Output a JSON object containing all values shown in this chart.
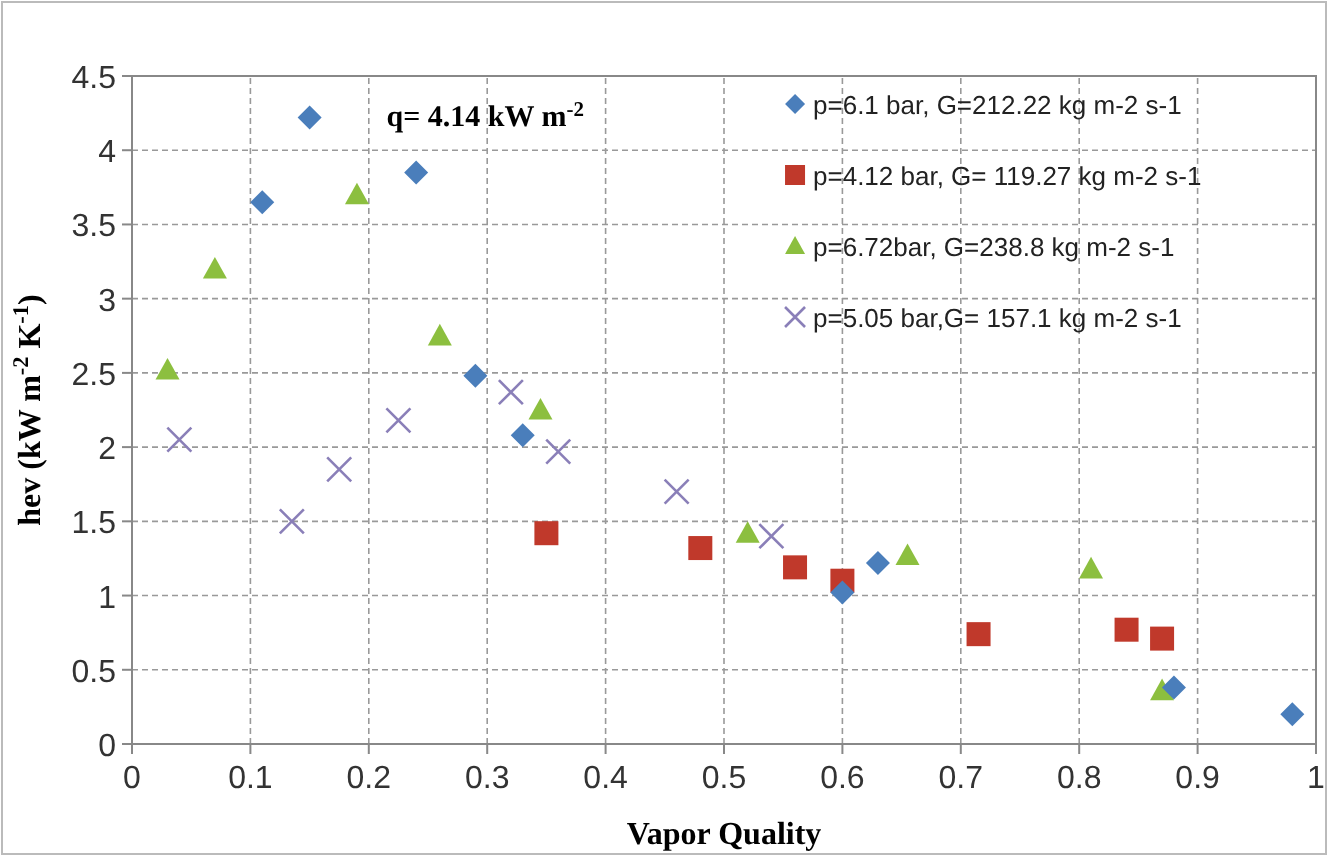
{
  "chart_data": {
    "type": "scatter",
    "xlabel": "Vapor Quality",
    "ylabel": "hev (kW m$^{-2}$ K$^{-1}$)",
    "annotations": [
      "q= 4.14 kW m$^{-2}$"
    ],
    "xlim": [
      0,
      1
    ],
    "xticks": [
      0,
      0.1,
      0.2,
      0.3,
      0.4,
      0.5,
      0.6,
      0.7,
      0.8,
      0.9,
      1
    ],
    "ylim": [
      0,
      4.5
    ],
    "yticks": [
      0,
      0.5,
      1,
      1.5,
      2,
      2.5,
      3,
      3.5,
      4,
      4.5
    ],
    "grid": true,
    "legend": "top right",
    "series": [
      {
        "name": "p=6.1 bar, G=212.22 kg m-2 s-1",
        "color": "#4a7ebb",
        "marker": "diamond",
        "x": [
          0.11,
          0.15,
          0.24,
          0.29,
          0.33,
          0.6,
          0.63,
          0.88,
          0.98
        ],
        "values": [
          3.65,
          4.22,
          3.85,
          2.48,
          2.08,
          1.02,
          1.22,
          0.38,
          0.2
        ]
      },
      {
        "name": "p=4.12 bar, G= 119.27 kg m-2 s-1",
        "color": "#c0392b",
        "marker": "square",
        "x": [
          0.35,
          0.48,
          0.56,
          0.6,
          0.715,
          0.84,
          0.87
        ],
        "values": [
          1.42,
          1.32,
          1.19,
          1.1,
          0.74,
          0.77,
          0.71
        ]
      },
      {
        "name": "p=6.72bar, G=238.8 kg m-2 s-1",
        "color": "#8cbf3f",
        "marker": "triangle",
        "x": [
          0.03,
          0.07,
          0.19,
          0.26,
          0.345,
          0.52,
          0.655,
          0.81,
          0.87
        ],
        "values": [
          2.52,
          3.2,
          3.7,
          2.75,
          2.25,
          1.42,
          1.27,
          1.18,
          0.36
        ]
      },
      {
        "name": "p=5.05 bar,G= 157.1 kg m-2 s-1",
        "color": "#8a7fb8",
        "marker": "cross",
        "x": [
          0.04,
          0.135,
          0.175,
          0.225,
          0.32,
          0.36,
          0.46,
          0.54
        ],
        "values": [
          2.05,
          1.5,
          1.85,
          2.18,
          2.37,
          1.97,
          1.7,
          1.4
        ]
      }
    ]
  }
}
